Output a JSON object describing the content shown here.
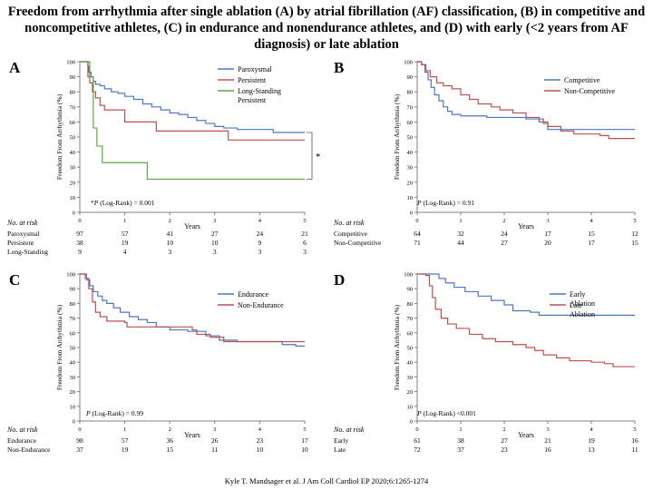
{
  "title": "Freedom from arrhythmia after single ablation (A) by atrial fibrillation (AF) classification, (B) in competitive and noncompetitive athletes, (C) in endurance and nonendurance athletes, and (D) with early (<2 years from AF diagnosis) or late ablation",
  "citation": "Kyle T. Mandsager et al. J Am Coll Cardiol EP 2020;6:1265-1274",
  "colors": {
    "blue": "#4a78c2",
    "red": "#c0504d",
    "green": "#5aa848",
    "axis": "#808080"
  },
  "chart_data": [
    {
      "type": "line",
      "panel_label": "A",
      "xlabel": "Years",
      "ylabel": "Freedom From Arrhythmia (%)",
      "xlim": [
        0,
        5
      ],
      "ylim": [
        0,
        100
      ],
      "x_ticks": [
        "0",
        "1",
        "2",
        "3",
        "4",
        "5"
      ],
      "y_ticks": [
        "0",
        "10",
        "20",
        "30",
        "40",
        "50",
        "60",
        "70",
        "80",
        "90",
        "100"
      ],
      "annotation": "*P (Log-Rank) = 0.001",
      "bracket_label": "*",
      "series": [
        {
          "name": "Paroxysmal",
          "color": "blue",
          "points": [
            [
              0,
              100
            ],
            [
              0.15,
              100
            ],
            [
              0.18,
              97
            ],
            [
              0.2,
              93
            ],
            [
              0.25,
              90
            ],
            [
              0.3,
              87
            ],
            [
              0.35,
              85
            ],
            [
              0.45,
              84
            ],
            [
              0.55,
              82
            ],
            [
              0.7,
              80
            ],
            [
              0.85,
              79
            ],
            [
              1.0,
              77
            ],
            [
              1.2,
              75
            ],
            [
              1.4,
              72
            ],
            [
              1.6,
              70
            ],
            [
              1.8,
              68
            ],
            [
              2.0,
              66
            ],
            [
              2.2,
              65
            ],
            [
              2.4,
              63
            ],
            [
              2.6,
              61
            ],
            [
              2.8,
              59
            ],
            [
              3.0,
              57
            ],
            [
              3.2,
              56
            ],
            [
              3.5,
              55
            ],
            [
              4.0,
              55
            ],
            [
              4.3,
              53
            ],
            [
              5.0,
              53
            ]
          ]
        },
        {
          "name": "Persistent",
          "color": "red",
          "points": [
            [
              0,
              100
            ],
            [
              0.15,
              100
            ],
            [
              0.18,
              90
            ],
            [
              0.22,
              86
            ],
            [
              0.28,
              80
            ],
            [
              0.35,
              76
            ],
            [
              0.45,
              71
            ],
            [
              0.55,
              68
            ],
            [
              0.9,
              68
            ],
            [
              1.0,
              60
            ],
            [
              1.6,
              60
            ],
            [
              1.7,
              54
            ],
            [
              3.2,
              54
            ],
            [
              3.3,
              48
            ],
            [
              5.0,
              48
            ]
          ]
        },
        {
          "name": "Long-Standing Persistent",
          "color": "green",
          "points": [
            [
              0,
              100
            ],
            [
              0.15,
              100
            ],
            [
              0.22,
              90
            ],
            [
              0.3,
              56
            ],
            [
              0.38,
              44
            ],
            [
              0.5,
              33
            ],
            [
              1.45,
              33
            ],
            [
              1.5,
              22
            ],
            [
              5.0,
              22
            ]
          ]
        }
      ],
      "risk_table": {
        "header": "No. at risk",
        "rows": [
          {
            "label": "Paroxysmal",
            "values": [
              "97",
              "57",
              "41",
              "27",
              "24",
              "21"
            ]
          },
          {
            "label": "Persistent",
            "values": [
              "38",
              "19",
              "10",
              "10",
              "9",
              "6"
            ]
          },
          {
            "label": "Long-Standing",
            "values": [
              "9",
              "4",
              "3",
              "3",
              "3",
              "3"
            ]
          }
        ]
      }
    },
    {
      "type": "line",
      "panel_label": "B",
      "xlabel": "Years",
      "ylabel": "Freedom From Arrhythmia (%)",
      "xlim": [
        0,
        5
      ],
      "ylim": [
        0,
        100
      ],
      "x_ticks": [
        "0",
        "1",
        "2",
        "3",
        "4",
        "5"
      ],
      "y_ticks": [
        "0",
        "10",
        "20",
        "30",
        "40",
        "50",
        "60",
        "70",
        "80",
        "90",
        "100"
      ],
      "annotation": "P (Log-Rank) = 0.91",
      "series": [
        {
          "name": "Competitive",
          "color": "blue",
          "points": [
            [
              0,
              100
            ],
            [
              0.1,
              98
            ],
            [
              0.18,
              93
            ],
            [
              0.25,
              88
            ],
            [
              0.32,
              83
            ],
            [
              0.4,
              78
            ],
            [
              0.5,
              74
            ],
            [
              0.6,
              70
            ],
            [
              0.7,
              67
            ],
            [
              0.8,
              65
            ],
            [
              1.0,
              64
            ],
            [
              1.6,
              63
            ],
            [
              2.5,
              62
            ],
            [
              2.9,
              59
            ],
            [
              3.0,
              55
            ],
            [
              3.5,
              55
            ],
            [
              5.0,
              55
            ]
          ]
        },
        {
          "name": "Non-Competitive",
          "color": "red",
          "points": [
            [
              0,
              100
            ],
            [
              0.1,
              98
            ],
            [
              0.2,
              94
            ],
            [
              0.3,
              90
            ],
            [
              0.45,
              86
            ],
            [
              0.6,
              84
            ],
            [
              0.8,
              82
            ],
            [
              1.0,
              78
            ],
            [
              1.2,
              75
            ],
            [
              1.4,
              72
            ],
            [
              1.7,
              70
            ],
            [
              1.9,
              68
            ],
            [
              2.2,
              66
            ],
            [
              2.5,
              63
            ],
            [
              2.8,
              60
            ],
            [
              3.0,
              57
            ],
            [
              3.3,
              54
            ],
            [
              3.6,
              52
            ],
            [
              4.2,
              51
            ],
            [
              4.4,
              49
            ],
            [
              5.0,
              49
            ]
          ]
        }
      ],
      "risk_table": {
        "header": "No. at risk",
        "rows": [
          {
            "label": "Competitive",
            "values": [
              "64",
              "32",
              "24",
              "17",
              "15",
              "12"
            ]
          },
          {
            "label": "Non-Competitive",
            "values": [
              "71",
              "44",
              "27",
              "20",
              "17",
              "15"
            ]
          }
        ]
      }
    },
    {
      "type": "line",
      "panel_label": "C",
      "xlabel": "Years",
      "ylabel": "Freedom From Arrhythmia (%)",
      "xlim": [
        0,
        5
      ],
      "ylim": [
        0,
        100
      ],
      "x_ticks": [
        "0",
        "1",
        "2",
        "3",
        "4",
        "5"
      ],
      "y_ticks": [
        "0",
        "10",
        "20",
        "30",
        "40",
        "50",
        "60",
        "70",
        "80",
        "90",
        "100"
      ],
      "annotation": "P (Log-Rank) = 0.99",
      "series": [
        {
          "name": "Endurance",
          "color": "blue",
          "points": [
            [
              0,
              100
            ],
            [
              0.15,
              96
            ],
            [
              0.22,
              92
            ],
            [
              0.3,
              88
            ],
            [
              0.4,
              85
            ],
            [
              0.5,
              82
            ],
            [
              0.6,
              80
            ],
            [
              0.75,
              77
            ],
            [
              0.9,
              74
            ],
            [
              1.1,
              71
            ],
            [
              1.3,
              69
            ],
            [
              1.5,
              67
            ],
            [
              1.7,
              64
            ],
            [
              2.0,
              62
            ],
            [
              2.4,
              61
            ],
            [
              2.8,
              58
            ],
            [
              3.1,
              55
            ],
            [
              3.5,
              54
            ],
            [
              4.5,
              52
            ],
            [
              4.8,
              51
            ],
            [
              5.0,
              51
            ]
          ]
        },
        {
          "name": "Non-Endurance",
          "color": "red",
          "points": [
            [
              0,
              100
            ],
            [
              0.12,
              97
            ],
            [
              0.2,
              90
            ],
            [
              0.28,
              81
            ],
            [
              0.35,
              74
            ],
            [
              0.45,
              71
            ],
            [
              0.6,
              68
            ],
            [
              1.0,
              67
            ],
            [
              1.05,
              64
            ],
            [
              2.3,
              64
            ],
            [
              2.5,
              62
            ],
            [
              2.6,
              59
            ],
            [
              2.9,
              57
            ],
            [
              3.2,
              54
            ],
            [
              5.0,
              54
            ]
          ]
        }
      ],
      "risk_table": {
        "header": "No. at risk",
        "rows": [
          {
            "label": "Endurance",
            "values": [
              "98",
              "57",
              "36",
              "26",
              "23",
              "17"
            ]
          },
          {
            "label": "Non-Endurance",
            "values": [
              "37",
              "19",
              "15",
              "11",
              "10",
              "10"
            ]
          }
        ]
      }
    },
    {
      "type": "line",
      "panel_label": "D",
      "xlabel": "Years",
      "ylabel": "Freedom From Arrhythmia (%)",
      "xlim": [
        0,
        5
      ],
      "ylim": [
        0,
        100
      ],
      "x_ticks": [
        "0",
        "1",
        "2",
        "3",
        "4",
        "5"
      ],
      "y_ticks": [
        "0",
        "10",
        "20",
        "30",
        "40",
        "50",
        "60",
        "70",
        "80",
        "90",
        "100"
      ],
      "annotation": "P (Log-Rank) <0.001",
      "series": [
        {
          "name": "Early Ablation",
          "color": "blue",
          "points": [
            [
              0,
              100
            ],
            [
              0.4,
              100
            ],
            [
              0.5,
              97
            ],
            [
              0.65,
              94
            ],
            [
              0.85,
              91
            ],
            [
              1.1,
              88
            ],
            [
              1.4,
              85
            ],
            [
              1.7,
              82
            ],
            [
              2.0,
              79
            ],
            [
              2.2,
              75
            ],
            [
              2.6,
              74
            ],
            [
              2.8,
              72
            ],
            [
              3.0,
              72
            ],
            [
              5.0,
              72
            ]
          ]
        },
        {
          "name": "Late Ablation",
          "color": "red",
          "points": [
            [
              0,
              100
            ],
            [
              0.2,
              99
            ],
            [
              0.28,
              92
            ],
            [
              0.35,
              84
            ],
            [
              0.42,
              76
            ],
            [
              0.55,
              70
            ],
            [
              0.7,
              66
            ],
            [
              0.9,
              63
            ],
            [
              1.2,
              59
            ],
            [
              1.5,
              56
            ],
            [
              1.8,
              54
            ],
            [
              2.2,
              52
            ],
            [
              2.5,
              50
            ],
            [
              2.7,
              48
            ],
            [
              2.9,
              45
            ],
            [
              3.2,
              43
            ],
            [
              3.5,
              41
            ],
            [
              4.0,
              40
            ],
            [
              4.3,
              39
            ],
            [
              4.5,
              37
            ],
            [
              5.0,
              37
            ]
          ]
        }
      ],
      "risk_table": {
        "header": "No. at risk",
        "rows": [
          {
            "label": "Early",
            "values": [
              "61",
              "38",
              "27",
              "21",
              "19",
              "16"
            ]
          },
          {
            "label": "Late",
            "values": [
              "72",
              "37",
              "23",
              "16",
              "13",
              "11"
            ]
          }
        ]
      }
    }
  ]
}
